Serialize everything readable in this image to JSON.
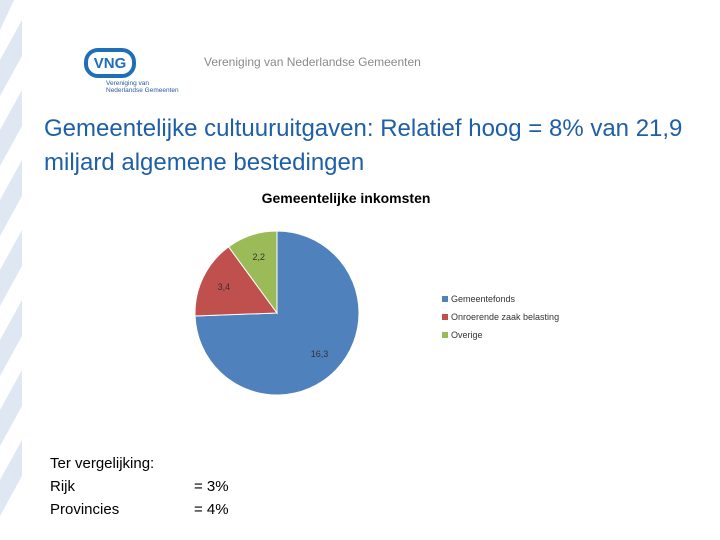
{
  "header": {
    "logo_text": "VNG",
    "logo_subtitle": "Vereniging van\nNederlandse Gemeenten",
    "organization": "Vereniging van Nederlandse Gemeenten"
  },
  "slide": {
    "title": "Gemeentelijke cultuuruitgaven: Relatief hoog = 8% van 21,9 miljard algemene bestedingen"
  },
  "comparison": {
    "heading": "Ter vergelijking:",
    "rows": [
      {
        "label": "Rijk",
        "value": "= 3%"
      },
      {
        "label": "Provincies",
        "value": "= 4%"
      }
    ]
  },
  "chart_data": {
    "type": "pie",
    "title": "Gemeentelijke inkomsten",
    "categories": [
      "Gemeentefonds",
      "Onroerende zaak belasting",
      "Overige"
    ],
    "values": [
      16.3,
      3.4,
      2.2
    ],
    "value_labels": [
      "16,3",
      "3,4",
      "2,2"
    ],
    "colors": [
      "#4f81bd",
      "#c0504d",
      "#9bbb59"
    ],
    "legend_position": "right"
  }
}
